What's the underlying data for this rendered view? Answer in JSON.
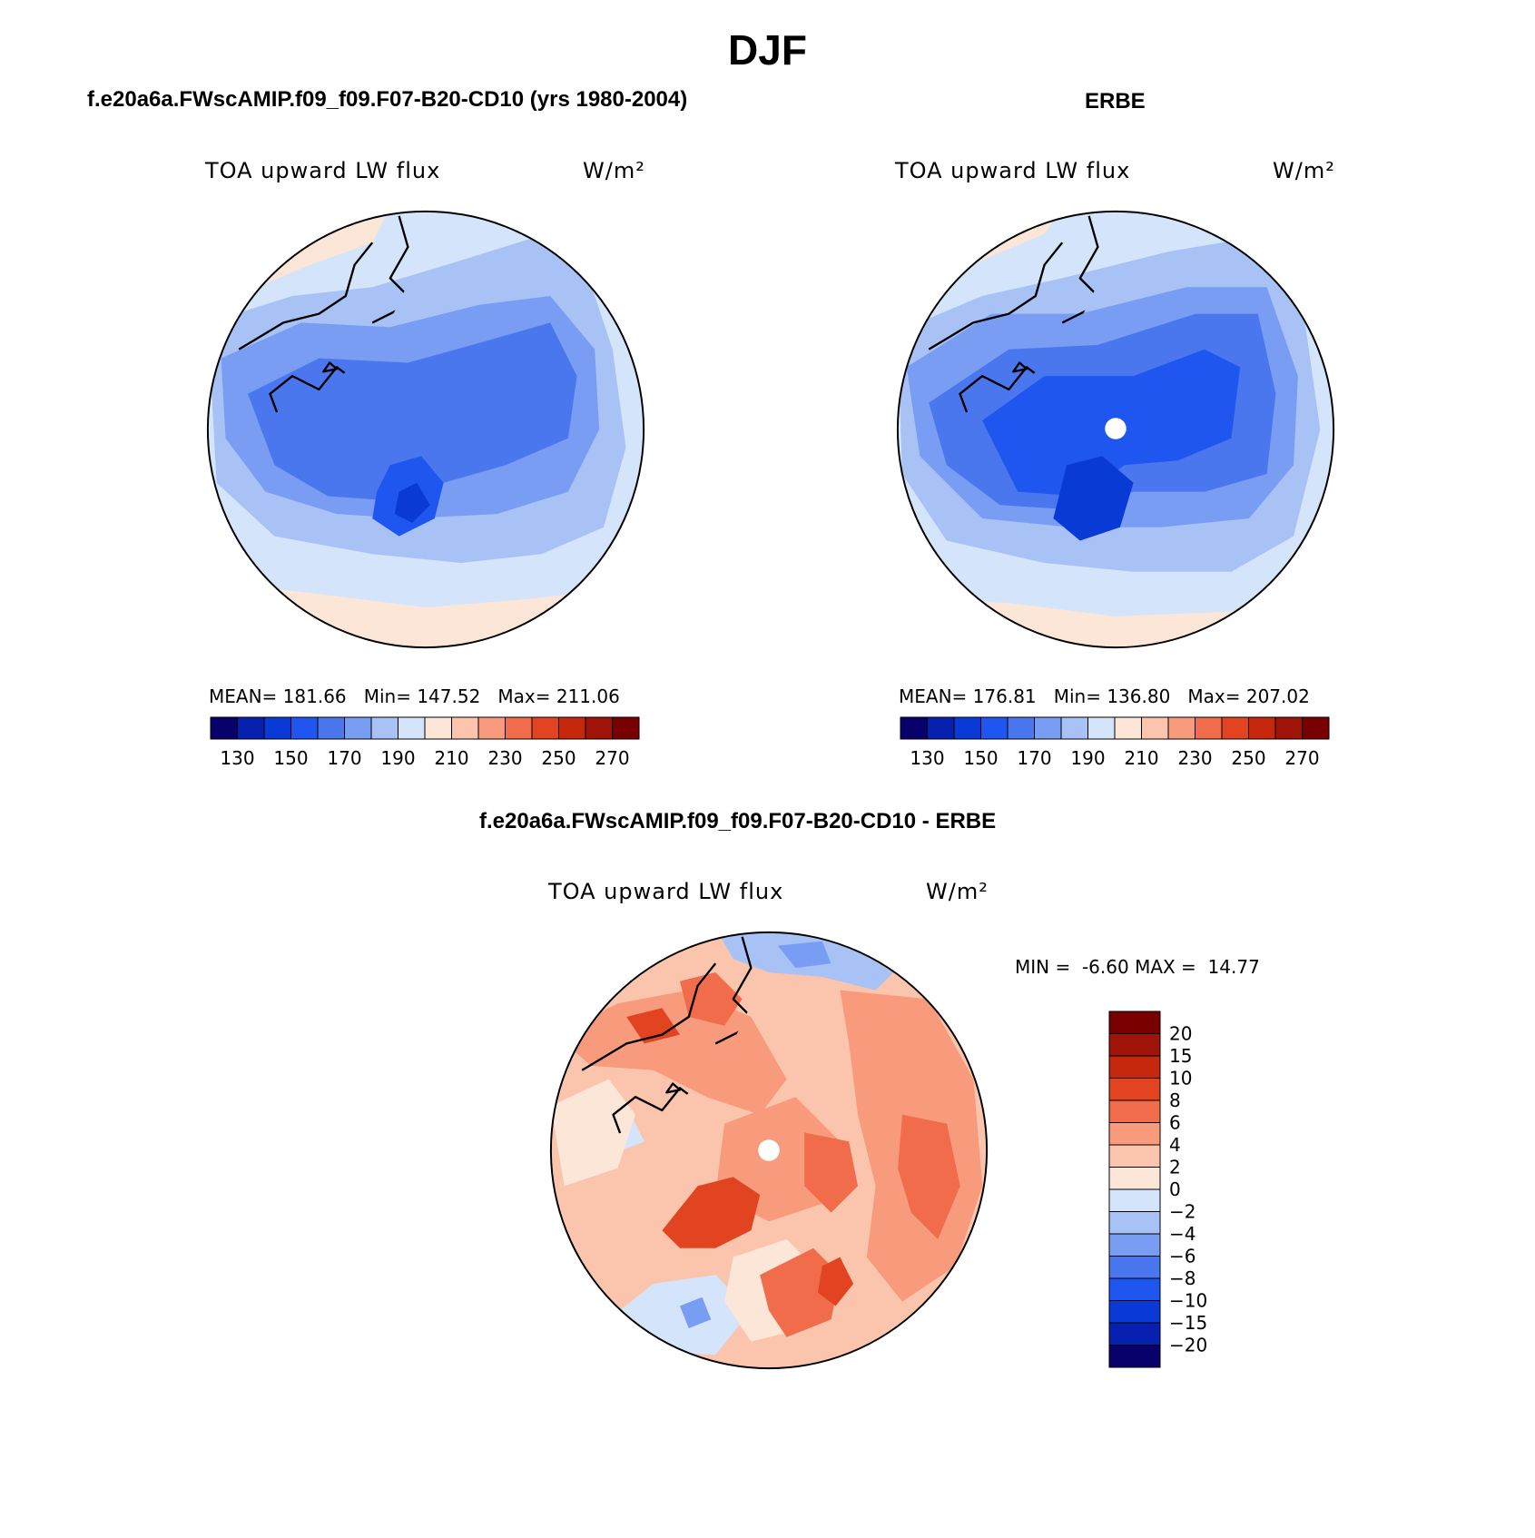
{
  "figure_title": "DJF",
  "panels": {
    "model": {
      "title": "f.e20a6a.FWscAMIP.f09_f09.F07-B20-CD10 (yrs 1980-2004)",
      "variable": "TOA upward LW flux",
      "units": "W/m²",
      "stats": {
        "mean_label": "MEAN=",
        "mean": "181.66",
        "min_label": "Min=",
        "min": "147.52",
        "max_label": "Max=",
        "max": "211.06"
      }
    },
    "obs": {
      "title": "ERBE",
      "variable": "TOA upward LW flux",
      "units": "W/m²",
      "stats": {
        "mean_label": "MEAN=",
        "mean": "176.81",
        "min_label": "Min=",
        "min": "136.80",
        "max_label": "Max=",
        "max": "207.02"
      }
    },
    "diff": {
      "title": "f.e20a6a.FWscAMIP.f09_f09.F07-B20-CD10 - ERBE",
      "variable": "TOA upward LW flux",
      "units": "W/m²",
      "stats": {
        "min_label": "MIN =",
        "min": "-6.60",
        "max_label": "MAX =",
        "max": "14.77"
      }
    }
  },
  "colorbars": {
    "abs": {
      "colors": [
        "#08006b",
        "#0820b0",
        "#0a3ad6",
        "#1f56f0",
        "#4a77ee",
        "#799df2",
        "#a8c2f6",
        "#d3e4fb",
        "#fce6d8",
        "#fbc5ad",
        "#f79b7c",
        "#f06c4a",
        "#e24422",
        "#c6280e",
        "#9f1408",
        "#780000"
      ],
      "tick_labels": [
        "130",
        "150",
        "170",
        "190",
        "210",
        "230",
        "250",
        "270"
      ]
    },
    "diff": {
      "colors": [
        "#08006b",
        "#0820b0",
        "#0a3ad6",
        "#1f56f0",
        "#4a77ee",
        "#799df2",
        "#a8c2f6",
        "#d3e4fb",
        "#fce6d8",
        "#fbc5ad",
        "#f79b7c",
        "#f06c4a",
        "#e24422",
        "#c6280e",
        "#9f1408",
        "#780000"
      ],
      "tick_labels": [
        "20",
        "15",
        "10",
        "8",
        "6",
        "4",
        "2",
        "0",
        "-2",
        "-4",
        "-6",
        "-8",
        "-10",
        "-15",
        "-20"
      ]
    }
  },
  "fill_colors": {
    "abs": {
      "warm": "#fce6d8",
      "light": "#d3e4fb",
      "l2": "#a8c2f6",
      "l3": "#799df2",
      "l4": "#4a77ee",
      "l5": "#1f56f0",
      "l6": "#0a3ad6"
    },
    "diff": {
      "base": "#fbc5ad",
      "pale": "#fce6d8",
      "mid": "#f79b7c",
      "strong": "#f06c4a",
      "deep": "#e24422",
      "blue1": "#d3e4fb",
      "blue2": "#a8c2f6",
      "blue3": "#799df2"
    }
  }
}
